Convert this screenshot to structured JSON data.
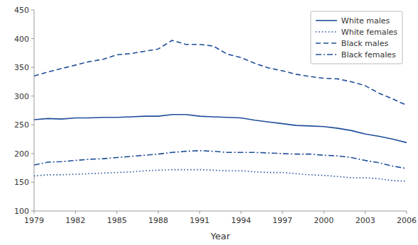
{
  "chart_data": {
    "type": "line",
    "xlabel": "Year",
    "x": [
      1979,
      1980,
      1981,
      1982,
      1983,
      1984,
      1985,
      1986,
      1987,
      1988,
      1989,
      1990,
      1991,
      1992,
      1993,
      1994,
      1995,
      1996,
      1997,
      1998,
      1999,
      2000,
      2001,
      2002,
      2003,
      2004,
      2005,
      2006
    ],
    "series": [
      {
        "name": "White males",
        "color": "#1f4e9b",
        "line_style": "solid",
        "values": [
          259,
          261,
          260,
          262,
          262,
          263,
          263,
          264,
          265,
          265,
          268,
          268,
          265,
          264,
          263,
          262,
          258,
          255,
          252,
          249,
          248,
          247,
          244,
          240,
          234,
          230,
          225,
          219
        ]
      },
      {
        "name": "White females",
        "color": "#1f4e9b",
        "line_style": "dotted",
        "values": [
          161,
          163,
          163,
          164,
          165,
          166,
          167,
          168,
          170,
          171,
          172,
          172,
          172,
          171,
          170,
          170,
          168,
          167,
          167,
          165,
          163,
          162,
          160,
          158,
          158,
          156,
          153,
          152
        ]
      },
      {
        "name": "Black males",
        "color": "#1f4e9b",
        "line_style": "dashed",
        "values": [
          335,
          342,
          348,
          354,
          360,
          364,
          372,
          374,
          378,
          382,
          397,
          390,
          390,
          387,
          373,
          367,
          357,
          349,
          344,
          338,
          334,
          331,
          330,
          325,
          318,
          305,
          295,
          284
        ]
      },
      {
        "name": "Black females",
        "color": "#1f4e9b",
        "line_style": "dashdot",
        "values": [
          180,
          185,
          186,
          188,
          190,
          191,
          193,
          195,
          197,
          199,
          202,
          204,
          205,
          204,
          202,
          202,
          202,
          201,
          200,
          199,
          199,
          197,
          196,
          193,
          188,
          184,
          178,
          174
        ]
      }
    ],
    "xlim": [
      1979,
      2006
    ],
    "xticks": [
      1979,
      1982,
      1985,
      1988,
      1991,
      1994,
      1997,
      2000,
      2003,
      2006
    ],
    "ylim": [
      100,
      450
    ],
    "yticks": [
      100,
      150,
      200,
      250,
      300,
      350,
      400,
      450
    ],
    "grid": false,
    "legend": "upper right"
  }
}
